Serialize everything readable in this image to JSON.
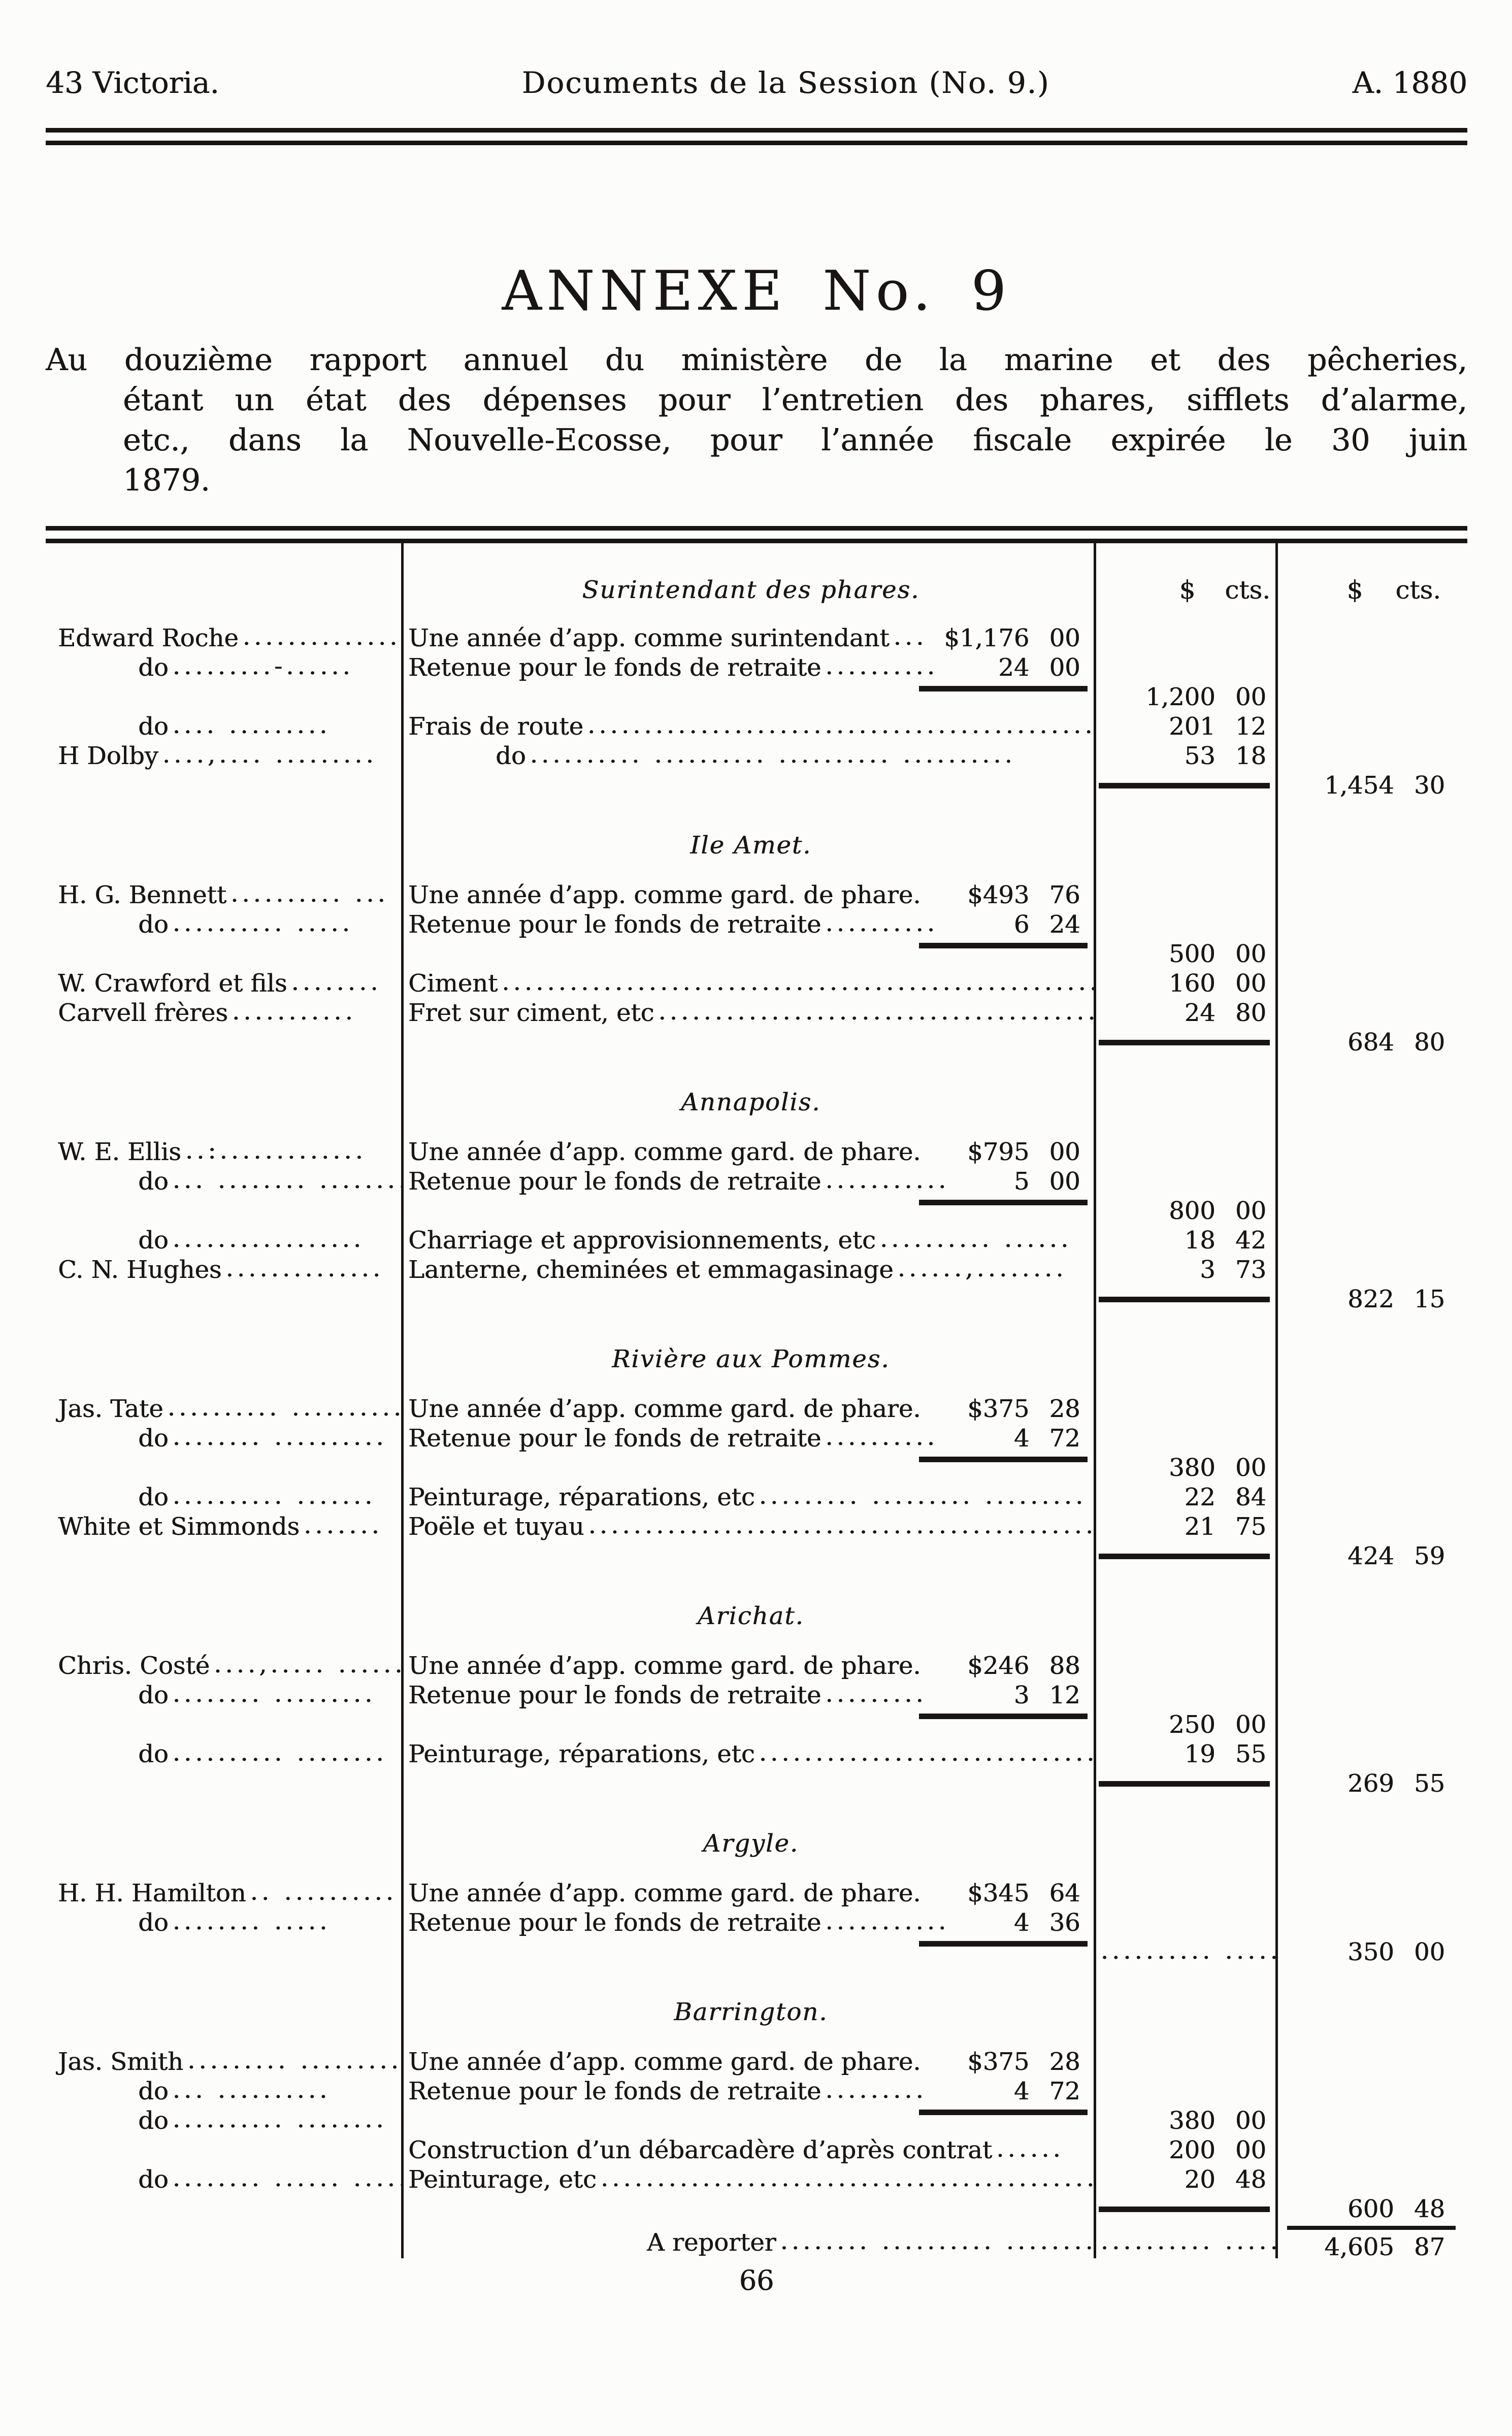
{
  "running_head": {
    "left": "43 Victoria.",
    "center": "Documents de la Session (No. 9.)",
    "right": "A. 1880"
  },
  "title": "ANNEXE No. 9",
  "intro": {
    "lines": [
      "Au douzième rapport annuel du ministère de la marine et des pêcheries,",
      "étant un état des dépenses pour l’entretien des phares, sifflets d’alarme,",
      "etc., dans la Nouvelle-Ecosse, pour l’année fiscale expirée le 30 juin",
      "1879."
    ]
  },
  "table": {
    "col_headers": {
      "dollar": "$",
      "cents": "cts."
    },
    "rows": [
      {
        "t": "head1",
        "c2": "Surintendant des phares."
      },
      {
        "t": "r",
        "c1": "Edward Roche",
        "c1dots": "................",
        "c2": "Une année d’app. comme surintendant",
        "c2dots": "...",
        "c2amt": "$1,176 00"
      },
      {
        "t": "r",
        "c1": "do",
        "c1do": true,
        "c1dots": ".........-......",
        "c2": "Retenue pour le fonds de retraite",
        "c2dots": "..........",
        "c2amt": "24 00"
      },
      {
        "t": "r",
        "r2": true,
        "c3": "1,200 00"
      },
      {
        "t": "r",
        "c1": "do",
        "c1do": true,
        "c1dots": ".... .........",
        "c2": "Frais de route",
        "c2dots": "................................................................",
        "c3": "201 12"
      },
      {
        "t": "r",
        "c1": "H Dolby",
        "c1dots": "....,.... .........",
        "c2": "do",
        "c2do": true,
        "c2dots": ".......... .......... .......... ..........",
        "c3": "53 18"
      },
      {
        "t": "r",
        "r3": true,
        "c4": "1,454 30"
      },
      {
        "t": "sec",
        "c2": "Ile Amet."
      },
      {
        "t": "r",
        "c1": "H. G. Bennett",
        "c1dots": ".......... ...",
        "c2": "Une année d’app. comme gard. de phare.",
        "c2amt": "$493 76"
      },
      {
        "t": "r",
        "c1": "do",
        "c1do": true,
        "c1dots": ".......... .....",
        "c2": "Retenue pour le fonds de retraite",
        "c2dots": "..........",
        "c2amt": "6 24"
      },
      {
        "t": "r",
        "r2": true,
        "c3": "500 00"
      },
      {
        "t": "r",
        "c1": "W. Crawford et fils",
        "c1dots": "........",
        "c2": "Ciment",
        "c2dots": "................................................................",
        "c3": "160 00"
      },
      {
        "t": "r",
        "c1": "Carvell frères",
        "c1dots": "...........",
        "c2": "Fret sur ciment, etc",
        "c2dots": "................................................................",
        "c3": "24 80"
      },
      {
        "t": "r",
        "r3": true,
        "c4": "684 80"
      },
      {
        "t": "sec",
        "c2": "Annapolis."
      },
      {
        "t": "r",
        "c1": "W. E. Ellis",
        "c1dots": "..:.............",
        "c2": "Une année d’app. comme gard. de phare.",
        "c2amt": "$795 00"
      },
      {
        "t": "r",
        "c1": "do",
        "c1do": true,
        "c1dots": "... ........ ........",
        "c2": "Retenue pour le fonds de retraite",
        "c2dots": "...........",
        "c2amt": "5 00"
      },
      {
        "t": "r",
        "r2": true,
        "c3": "800 00"
      },
      {
        "t": "r",
        "c1": "do",
        "c1do": true,
        "c1dots": ".................",
        "c2": "Charriage et approvisionnements, etc",
        "c2dots": ".......... ......",
        "c3": "18 42"
      },
      {
        "t": "r",
        "c1": "C. N. Hughes",
        "c1dots": "..............",
        "c2": "Lanterne, cheminées et emmagasinage",
        "c2dots": "......,........",
        "c3": "3 73"
      },
      {
        "t": "r",
        "r3": true,
        "c4": "822 15"
      },
      {
        "t": "sec",
        "c2": "Rivière aux Pommes."
      },
      {
        "t": "r",
        "c1": "Jas. Tate",
        "c1dots": ".......... ..........",
        "c2": "Une année d’app. comme gard. de phare.",
        "c2amt": "$375 28"
      },
      {
        "t": "r",
        "c1": "do",
        "c1do": true,
        "c1dots": "........ ..........",
        "c2": "Retenue pour le fonds de retraite",
        "c2dots": "..........",
        "c2amt": "4 72"
      },
      {
        "t": "r",
        "r2": true,
        "c3": "380 00"
      },
      {
        "t": "r",
        "c1": "do",
        "c1do": true,
        "c1dots": ".......... .......",
        "c2": "Peinturage, réparations, etc",
        "c2dots": "......... ......... .........",
        "c3": "22 84"
      },
      {
        "t": "r",
        "c1": "White et Simmonds",
        "c1dots": ".......",
        "c2": "Poële et tuyau",
        "c2dots": "................................................................",
        "c3": "21 75"
      },
      {
        "t": "r",
        "r3": true,
        "c4": "424 59"
      },
      {
        "t": "sec",
        "c2": "Arichat."
      },
      {
        "t": "r",
        "c1": "Chris. Costé",
        "c1dots": "....,..... ......",
        "c2": "Une année d’app. comme gard. de phare.",
        "c2amt": "$246 88"
      },
      {
        "t": "r",
        "c1": "do",
        "c1do": true,
        "c1dots": "........ .........",
        "c2": "Retenue pour le fonds de retraite",
        "c2dots": ".........",
        "c2amt": "3 12"
      },
      {
        "t": "r",
        "r2": true,
        "c3": "250 00"
      },
      {
        "t": "r",
        "c1": "do",
        "c1do": true,
        "c1dots": ".......... ........",
        "c2": "Peinturage, réparations, etc",
        "c2dots": "................................................................",
        "c3": "19 55"
      },
      {
        "t": "r",
        "r3": true,
        "c4": "269 55"
      },
      {
        "t": "sec",
        "c2": "Argyle."
      },
      {
        "t": "r",
        "c1": "H. H. Hamilton",
        "c1dots": ".. ..........",
        "c2": "Une année d’app. comme gard. de phare.",
        "c2amt": "$345 64"
      },
      {
        "t": "r",
        "c1": "do",
        "c1do": true,
        "c1dots": "........ .....",
        "c2": "Retenue pour le fonds de retraite",
        "c2dots": "...........",
        "c2amt": "4 36"
      },
      {
        "t": "r",
        "r2": true,
        "c3dots": ".......... ........ .",
        "c4": "350 00"
      },
      {
        "t": "sec",
        "c2": "Barrington."
      },
      {
        "t": "r",
        "c1": "Jas. Smith",
        "c1dots": "......... .........",
        "c2": "Une année d’app. comme gard. de phare.",
        "c2amt": "$375 28"
      },
      {
        "t": "r",
        "c1": "do",
        "c1do": true,
        "c1dots": "... ..........",
        "c2": "Retenue pour le fonds de retraite",
        "c2dots": ".........",
        "c2amt": "4 72"
      },
      {
        "t": "r",
        "c1": "do",
        "c1do": true,
        "c1dots": ".......... ........",
        "r2": true,
        "c3": "380 00"
      },
      {
        "t": "r",
        "c2": "Construction d’un débarcadère d’après contrat",
        "c2dots": "......",
        "c3": "200 00"
      },
      {
        "t": "r",
        "c1": "do",
        "c1do": true,
        "c1dots": "........ ...... ......",
        "c2": "Peinturage, etc",
        "c2dots": "................................................................",
        "c3": "20 48"
      },
      {
        "t": "r",
        "r3": true,
        "c4": "600 48"
      },
      {
        "t": "r",
        "foot": true,
        "c2": "A reporter",
        "c2rep": true,
        "c2dots": "........ .......... ..........",
        "c3dots": ".......... ..........",
        "c4": "4,605 87",
        "r4": true
      }
    ]
  },
  "footer": {
    "page_number": "66"
  }
}
